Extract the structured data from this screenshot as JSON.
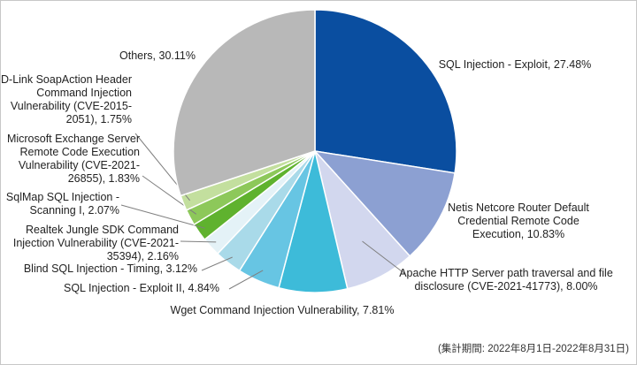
{
  "chart_data": {
    "type": "pie",
    "slices": [
      {
        "label": "SQL Injection - Exploit",
        "value": 27.48,
        "display": "27.48%",
        "color": "#0A4EA0"
      },
      {
        "label": "Netis Netcore Router Default Credential Remote Code Execution",
        "value": 10.83,
        "display": "10.83%",
        "color": "#8CA0D2"
      },
      {
        "label": "Apache HTTP Server path traversal and file disclosure (CVE-2021-41773)",
        "value": 8.0,
        "display": "8.00%",
        "color": "#D2D7EE"
      },
      {
        "label": "Wget Command Injection Vulnerability",
        "value": 7.81,
        "display": "7.81%",
        "color": "#3DBBD9"
      },
      {
        "label": "SQL Injection - Exploit II",
        "value": 4.84,
        "display": "4.84%",
        "color": "#67C5E3"
      },
      {
        "label": "Blind SQL Injection - Timing",
        "value": 3.12,
        "display": "3.12%",
        "color": "#A9DAE9"
      },
      {
        "label": "Realtek Jungle SDK Command Injection Vulnerability (CVE-2021-35394)",
        "value": 2.16,
        "display": "2.16%",
        "color": "#E4F2F7"
      },
      {
        "label": "SqlMap SQL Injection - Scanning I",
        "value": 2.07,
        "display": "2.07%",
        "color": "#5FB22E"
      },
      {
        "label": "Microsoft Exchange Server Remote Code Execution Vulnerability (CVE-2021-26855)",
        "value": 1.83,
        "display": "1.83%",
        "color": "#8DC85A"
      },
      {
        "label": "D-Link SoapAction Header Command Injection Vulnerability (CVE-2015-2051)",
        "value": 1.75,
        "display": "1.75%",
        "color": "#C3DF9E"
      },
      {
        "label": "Others",
        "value": 30.11,
        "display": "30.11%",
        "color": "#B8B8B8"
      }
    ],
    "label_lines": [
      [
        "SQL Injection - Exploit, 27.48%"
      ],
      [
        "Netis Netcore Router Default",
        "Credential Remote Code",
        "Execution, 10.83%"
      ],
      [
        "Apache HTTP Server path traversal and file",
        "disclosure (CVE-2021-41773), 8.00%"
      ],
      [
        "Wget Command Injection Vulnerability, 7.81%"
      ],
      [
        "SQL Injection - Exploit II, 4.84%"
      ],
      [
        "Blind SQL Injection - Timing, 3.12%"
      ],
      [
        "Realtek Jungle SDK Command",
        "Injection Vulnerability (CVE-2021-",
        "35394), 2.16%"
      ],
      [
        "SqlMap SQL Injection -",
        "Scanning I, 2.07%"
      ],
      [
        "Microsoft Exchange Server",
        "Remote Code Execution",
        "Vulnerability (CVE-2021-",
        "26855), 1.83%"
      ],
      [
        "D-Link SoapAction Header",
        "Command Injection",
        "Vulnerability (CVE-2015-",
        "2051), 1.75%"
      ],
      [
        "Others, 30.11%"
      ]
    ],
    "legend": "none",
    "start": "12 o'clock, clockwise"
  },
  "footnote": "(集計期間: 2022年8月1日-2022年8月31日)"
}
